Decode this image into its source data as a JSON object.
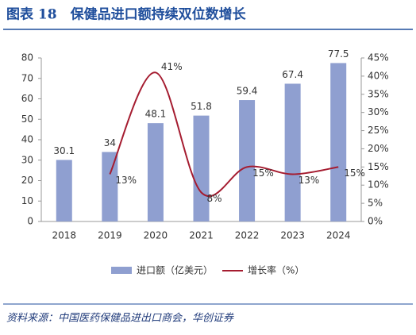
{
  "chart_data": {
    "type": "bar-line",
    "title": "图表 18　保健品进口额持续双位数增长",
    "source": "资料来源：中国医药保健品进出口商会，华创证券",
    "categories": [
      "2018",
      "2019",
      "2020",
      "2021",
      "2022",
      "2023",
      "2024"
    ],
    "series": [
      {
        "name": "进口额（亿美元）",
        "type": "bar",
        "color": "#8f9fd0",
        "values": [
          30.1,
          34,
          48.1,
          51.8,
          59.4,
          67.4,
          77.5
        ]
      },
      {
        "name": "增长率（%）",
        "type": "line",
        "axis": "y2",
        "color": "#a51c30",
        "values": [
          null,
          13,
          41,
          8,
          15,
          13,
          15
        ],
        "value_labels": [
          null,
          "13%",
          "41%",
          "8%",
          "15%",
          "13%",
          "15%"
        ]
      }
    ],
    "ylim": [
      0,
      80
    ],
    "yticks": [
      0,
      10,
      20,
      30,
      40,
      50,
      60,
      70,
      80
    ],
    "y2lim": [
      0,
      45
    ],
    "y2ticks": [
      {
        "value": 0,
        "label": "0%"
      },
      {
        "value": 5,
        "label": "5%"
      },
      {
        "value": 10,
        "label": "10%"
      },
      {
        "value": 15,
        "label": "15%"
      },
      {
        "value": 20,
        "label": "20%"
      },
      {
        "value": 25,
        "label": "25%"
      },
      {
        "value": 30,
        "label": "30%"
      },
      {
        "value": 35,
        "label": "35%"
      },
      {
        "value": 40,
        "label": "40%"
      },
      {
        "value": 45,
        "label": "45%"
      }
    ]
  }
}
